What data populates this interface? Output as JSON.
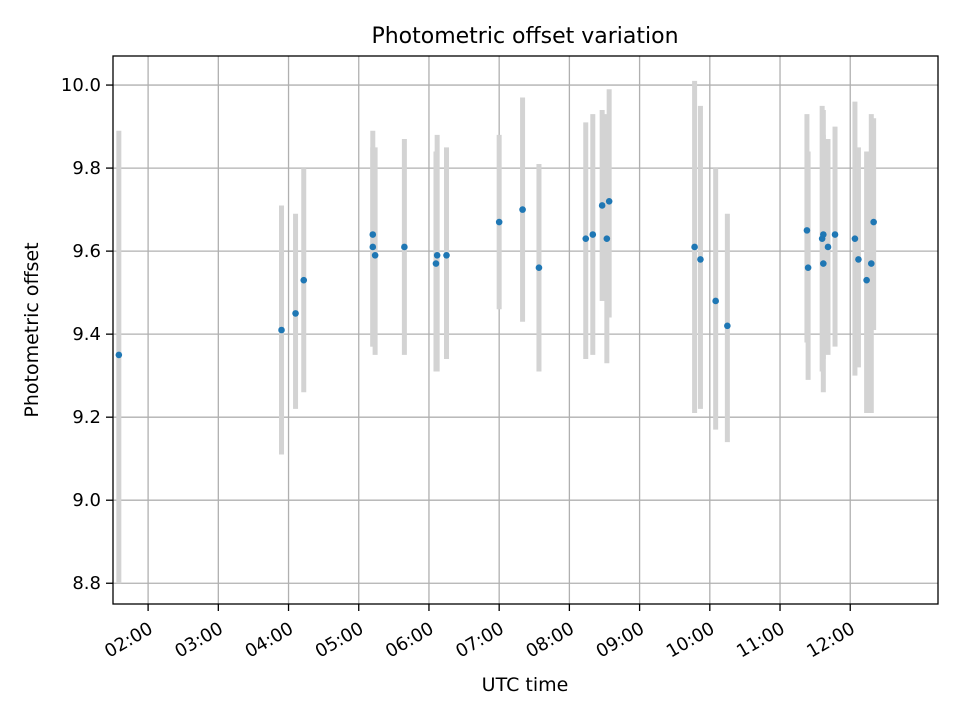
{
  "chart_data": {
    "type": "scatter",
    "title": "Photometric offset variation",
    "xlabel": "UTC time",
    "ylabel": "Photometric offset",
    "ylim": [
      8.75,
      10.07
    ],
    "xlim": [
      "01:30",
      "13:15"
    ],
    "grid": true,
    "x_ticks": [
      "02:00",
      "03:00",
      "04:00",
      "05:00",
      "06:00",
      "07:00",
      "08:00",
      "09:00",
      "10:00",
      "11:00",
      "12:00"
    ],
    "y_ticks": [
      "8.8",
      "9.0",
      "9.2",
      "9.4",
      "9.6",
      "9.8",
      "10.0"
    ],
    "colors": {
      "point": "#1f77b4",
      "errorbar": "#d3d3d3",
      "grid": "#b0b0b0"
    },
    "points": [
      {
        "x": "01:35",
        "y": 9.35,
        "lo": 8.8,
        "hi": 9.89
      },
      {
        "x": "03:54",
        "y": 9.41,
        "lo": 9.11,
        "hi": 9.71
      },
      {
        "x": "04:06",
        "y": 9.45,
        "lo": 9.22,
        "hi": 9.69
      },
      {
        "x": "04:13",
        "y": 9.53,
        "lo": 9.26,
        "hi": 9.8
      },
      {
        "x": "05:12",
        "y": 9.64,
        "lo": 9.37,
        "hi": 9.89
      },
      {
        "x": "05:12",
        "y": 9.61,
        "lo": 9.37,
        "hi": 9.85
      },
      {
        "x": "05:14",
        "y": 9.59,
        "lo": 9.35,
        "hi": 9.85
      },
      {
        "x": "05:39",
        "y": 9.61,
        "lo": 9.35,
        "hi": 9.87
      },
      {
        "x": "06:06",
        "y": 9.57,
        "lo": 9.31,
        "hi": 9.84
      },
      {
        "x": "06:07",
        "y": 9.59,
        "lo": 9.31,
        "hi": 9.88
      },
      {
        "x": "06:15",
        "y": 9.59,
        "lo": 9.34,
        "hi": 9.85
      },
      {
        "x": "07:00",
        "y": 9.67,
        "lo": 9.46,
        "hi": 9.88
      },
      {
        "x": "07:20",
        "y": 9.7,
        "lo": 9.43,
        "hi": 9.97
      },
      {
        "x": "07:34",
        "y": 9.56,
        "lo": 9.31,
        "hi": 9.81
      },
      {
        "x": "08:14",
        "y": 9.63,
        "lo": 9.34,
        "hi": 9.91
      },
      {
        "x": "08:20",
        "y": 9.64,
        "lo": 9.35,
        "hi": 9.93
      },
      {
        "x": "08:28",
        "y": 9.71,
        "lo": 9.48,
        "hi": 9.94
      },
      {
        "x": "08:32",
        "y": 9.63,
        "lo": 9.33,
        "hi": 9.93
      },
      {
        "x": "08:34",
        "y": 9.72,
        "lo": 9.44,
        "hi": 9.99
      },
      {
        "x": "09:47",
        "y": 9.61,
        "lo": 9.21,
        "hi": 10.01
      },
      {
        "x": "09:52",
        "y": 9.58,
        "lo": 9.22,
        "hi": 9.95
      },
      {
        "x": "10:05",
        "y": 9.48,
        "lo": 9.17,
        "hi": 9.8
      },
      {
        "x": "10:15",
        "y": 9.42,
        "lo": 9.14,
        "hi": 9.69
      },
      {
        "x": "11:23",
        "y": 9.65,
        "lo": 9.38,
        "hi": 9.93
      },
      {
        "x": "11:24",
        "y": 9.56,
        "lo": 9.29,
        "hi": 9.84
      },
      {
        "x": "11:36",
        "y": 9.63,
        "lo": 9.31,
        "hi": 9.95
      },
      {
        "x": "11:37",
        "y": 9.64,
        "lo": 9.34,
        "hi": 9.94
      },
      {
        "x": "11:37",
        "y": 9.57,
        "lo": 9.26,
        "hi": 9.88
      },
      {
        "x": "11:41",
        "y": 9.61,
        "lo": 9.35,
        "hi": 9.87
      },
      {
        "x": "11:47",
        "y": 9.64,
        "lo": 9.37,
        "hi": 9.9
      },
      {
        "x": "12:04",
        "y": 9.63,
        "lo": 9.3,
        "hi": 9.96
      },
      {
        "x": "12:07",
        "y": 9.58,
        "lo": 9.32,
        "hi": 9.85
      },
      {
        "x": "12:14",
        "y": 9.53,
        "lo": 9.21,
        "hi": 9.84
      },
      {
        "x": "12:18",
        "y": 9.57,
        "lo": 9.21,
        "hi": 9.93
      },
      {
        "x": "12:20",
        "y": 9.67,
        "lo": 9.41,
        "hi": 9.92
      }
    ]
  }
}
